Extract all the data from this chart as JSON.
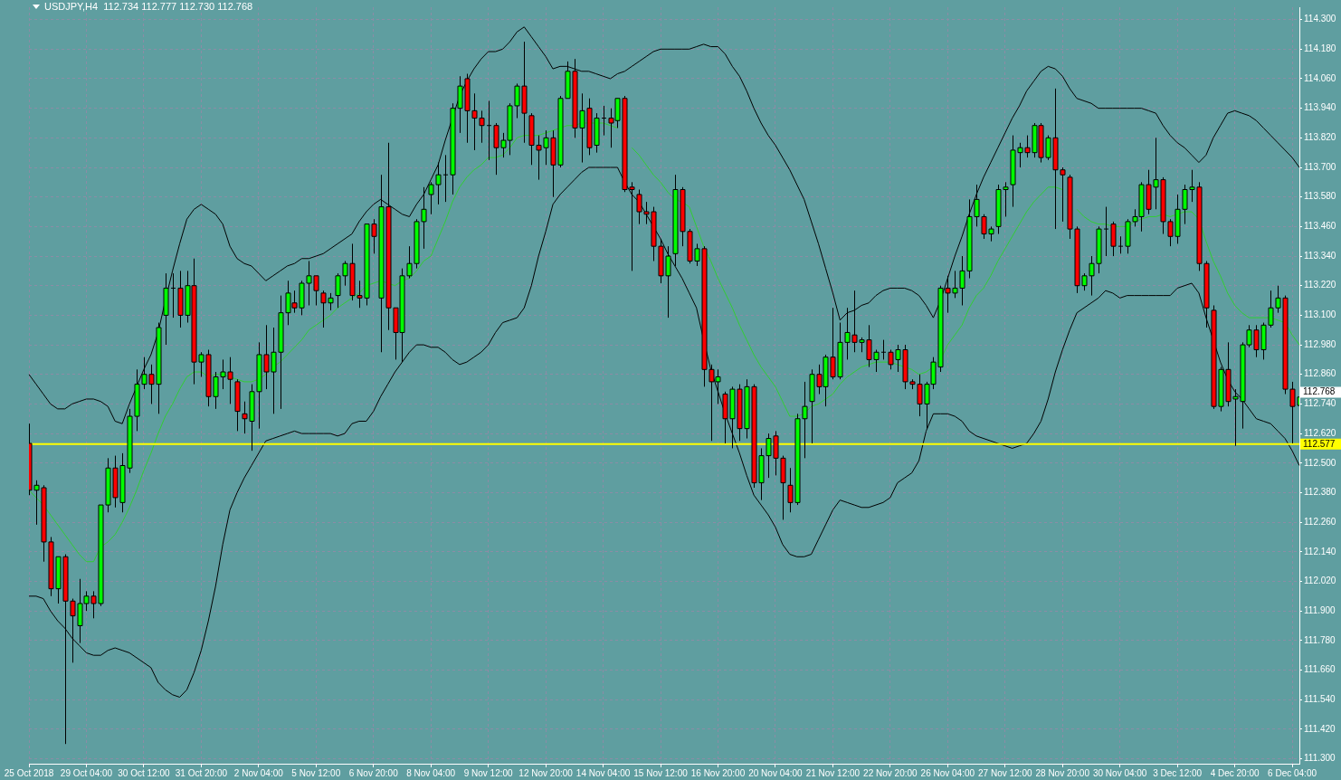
{
  "chart_data": {
    "type": "candlestick",
    "title": "USDJPY,H4  112.734 112.777 112.730 112.768",
    "categories": [
      "25 Oct 2018",
      null,
      null,
      null,
      null,
      null,
      null,
      null,
      "29 Oct 04:00",
      null,
      null,
      null,
      null,
      null,
      null,
      null,
      "30 Oct 12:00",
      null,
      null,
      null,
      null,
      null,
      null,
      null,
      "31 Oct 20:00",
      null,
      null,
      null,
      null,
      null,
      null,
      null,
      "2 Nov 04:00",
      null,
      null,
      null,
      null,
      null,
      null,
      null,
      "5 Nov 12:00",
      null,
      null,
      null,
      null,
      null,
      null,
      null,
      "6 Nov 20:00",
      null,
      null,
      null,
      null,
      null,
      null,
      null,
      "8 Nov 04:00",
      null,
      null,
      null,
      null,
      null,
      null,
      null,
      "9 Nov 12:00",
      null,
      null,
      null,
      null,
      null,
      null,
      null,
      "12 Nov 20:00",
      null,
      null,
      null,
      null,
      null,
      null,
      null,
      "14 Nov 04:00",
      null,
      null,
      null,
      null,
      null,
      null,
      null,
      "15 Nov 12:00",
      null,
      null,
      null,
      null,
      null,
      null,
      null,
      "16 Nov 20:00",
      null,
      null,
      null,
      null,
      null,
      null,
      null,
      "20 Nov 04:00",
      null,
      null,
      null,
      null,
      null,
      null,
      null,
      "21 Nov 12:00",
      null,
      null,
      null,
      null,
      null,
      null,
      null,
      "22 Nov 20:00",
      null,
      null,
      null,
      null,
      null,
      null,
      null,
      "26 Nov 04:00",
      null,
      null,
      null,
      null,
      null,
      null,
      null,
      "27 Nov 12:00",
      null,
      null,
      null,
      null,
      null,
      null,
      null,
      "28 Nov 20:00",
      null,
      null,
      null,
      null,
      null,
      null,
      null,
      "30 Nov 04:00",
      null,
      null,
      null,
      null,
      null,
      null,
      null,
      "3 Dec 12:00",
      null,
      null,
      null,
      null,
      null,
      null,
      null,
      "4 Dec 20:00",
      null,
      null,
      null,
      null,
      null,
      null,
      null,
      "6 Dec 04:00",
      null
    ],
    "ohlc": [
      [
        112.58,
        112.66,
        112.37,
        112.39
      ],
      [
        112.39,
        112.43,
        112.25,
        112.41
      ],
      [
        112.4,
        112.41,
        112.1,
        112.18
      ],
      [
        112.18,
        112.2,
        111.96,
        111.99
      ],
      [
        111.99,
        112.12,
        111.93,
        112.12
      ],
      [
        112.12,
        112.13,
        111.36,
        111.94
      ],
      [
        111.94,
        111.95,
        111.69,
        111.88
      ],
      [
        111.84,
        112.03,
        111.77,
        111.93
      ],
      [
        111.93,
        111.98,
        111.9,
        111.96
      ],
      [
        111.96,
        111.98,
        111.87,
        111.93
      ],
      [
        111.93,
        112.33,
        111.92,
        112.33
      ],
      [
        112.33,
        112.52,
        112.3,
        112.48
      ],
      [
        112.48,
        112.53,
        112.32,
        112.36
      ],
      [
        112.34,
        112.54,
        112.3,
        112.49
      ],
      [
        112.48,
        112.72,
        112.46,
        112.69
      ],
      [
        112.69,
        112.88,
        112.63,
        112.82
      ],
      [
        112.82,
        112.93,
        112.8,
        112.86
      ],
      [
        112.86,
        112.9,
        112.74,
        112.82
      ],
      [
        112.82,
        113.07,
        112.7,
        113.05
      ],
      [
        113.1,
        113.27,
        112.98,
        113.21
      ],
      [
        113.21,
        113.27,
        113.09,
        113.21
      ],
      [
        113.21,
        113.28,
        113.05,
        113.1
      ],
      [
        113.1,
        113.28,
        113.07,
        113.22
      ],
      [
        113.22,
        113.33,
        112.82,
        112.91
      ],
      [
        112.91,
        112.95,
        112.85,
        112.94
      ],
      [
        112.94,
        112.96,
        112.73,
        112.77
      ],
      [
        112.77,
        112.87,
        112.72,
        112.85
      ],
      [
        112.85,
        112.92,
        112.8,
        112.87
      ],
      [
        112.87,
        112.93,
        112.74,
        112.84
      ],
      [
        112.83,
        112.84,
        112.63,
        112.71
      ],
      [
        112.7,
        112.75,
        112.62,
        112.68
      ],
      [
        112.67,
        112.82,
        112.55,
        112.79
      ],
      [
        112.79,
        112.99,
        112.64,
        112.94
      ],
      [
        112.94,
        113.06,
        112.8,
        112.87
      ],
      [
        112.87,
        113.05,
        112.7,
        112.95
      ],
      [
        112.95,
        113.18,
        112.72,
        113.11
      ],
      [
        113.11,
        113.24,
        113.06,
        113.19
      ],
      [
        113.15,
        113.2,
        113.11,
        113.13
      ],
      [
        113.13,
        113.24,
        113.1,
        113.23
      ],
      [
        113.23,
        113.32,
        113.14,
        113.26
      ],
      [
        113.26,
        113.26,
        113.14,
        113.2
      ],
      [
        113.19,
        113.2,
        113.05,
        113.15
      ],
      [
        113.15,
        113.19,
        113.12,
        113.17
      ],
      [
        113.18,
        113.27,
        113.13,
        113.26
      ],
      [
        113.26,
        113.32,
        113.22,
        113.31
      ],
      [
        113.31,
        113.39,
        113.16,
        113.18
      ],
      [
        113.18,
        113.24,
        113.13,
        113.17
      ],
      [
        113.17,
        113.47,
        113.14,
        113.47
      ],
      [
        113.47,
        113.49,
        113.35,
        113.42
      ],
      [
        113.17,
        113.67,
        112.95,
        113.54
      ],
      [
        113.54,
        113.8,
        113.04,
        113.13
      ],
      [
        113.13,
        113.13,
        112.92,
        113.03
      ],
      [
        113.03,
        113.29,
        112.91,
        113.26
      ],
      [
        113.26,
        113.38,
        113.25,
        113.31
      ],
      [
        113.31,
        113.49,
        113.29,
        113.48
      ],
      [
        113.48,
        113.62,
        113.37,
        113.53
      ],
      [
        113.59,
        113.64,
        113.51,
        113.63
      ],
      [
        113.63,
        113.72,
        113.55,
        113.67
      ],
      [
        113.67,
        113.75,
        113.56,
        113.67
      ],
      [
        113.67,
        113.96,
        113.59,
        113.94
      ],
      [
        113.94,
        114.07,
        113.84,
        114.03
      ],
      [
        114.06,
        114.08,
        113.8,
        113.93
      ],
      [
        113.93,
        114.0,
        113.77,
        113.9
      ],
      [
        113.9,
        113.93,
        113.8,
        113.87
      ],
      [
        113.87,
        113.97,
        113.73,
        113.87
      ],
      [
        113.87,
        113.88,
        113.67,
        113.78
      ],
      [
        113.78,
        113.84,
        113.74,
        113.81
      ],
      [
        113.81,
        113.96,
        113.75,
        113.95
      ],
      [
        113.95,
        114.04,
        113.9,
        114.03
      ],
      [
        114.03,
        114.21,
        113.8,
        113.92
      ],
      [
        113.91,
        113.92,
        113.71,
        113.79
      ],
      [
        113.79,
        113.83,
        113.65,
        113.77
      ],
      [
        113.78,
        113.85,
        113.71,
        113.82
      ],
      [
        113.82,
        113.85,
        113.58,
        113.71
      ],
      [
        113.71,
        113.99,
        113.7,
        113.98
      ],
      [
        113.98,
        114.13,
        113.98,
        114.09
      ],
      [
        114.09,
        114.14,
        113.82,
        113.86
      ],
      [
        113.86,
        114.0,
        113.72,
        113.93
      ],
      [
        113.94,
        113.98,
        113.75,
        113.78
      ],
      [
        113.79,
        113.92,
        113.76,
        113.9
      ],
      [
        113.9,
        113.95,
        113.83,
        113.9
      ],
      [
        113.9,
        113.94,
        113.78,
        113.88
      ],
      [
        113.89,
        113.98,
        113.86,
        113.98
      ],
      [
        113.98,
        113.99,
        113.6,
        113.61
      ],
      [
        113.62,
        113.64,
        113.28,
        113.61
      ],
      [
        113.59,
        113.61,
        113.47,
        113.52
      ],
      [
        113.52,
        113.56,
        113.47,
        113.51
      ],
      [
        113.52,
        113.54,
        113.32,
        113.38
      ],
      [
        113.38,
        113.41,
        113.23,
        113.26
      ],
      [
        113.26,
        113.38,
        113.09,
        113.34
      ],
      [
        113.35,
        113.67,
        113.3,
        113.61
      ],
      [
        113.61,
        113.62,
        113.38,
        113.44
      ],
      [
        113.44,
        113.45,
        113.31,
        113.32
      ],
      [
        113.32,
        113.39,
        113.3,
        113.37
      ],
      [
        113.37,
        113.38,
        112.81,
        112.88
      ],
      [
        112.88,
        112.9,
        112.59,
        112.83
      ],
      [
        112.83,
        112.88,
        112.74,
        112.85
      ],
      [
        112.78,
        112.79,
        112.58,
        112.68
      ],
      [
        112.68,
        112.81,
        112.56,
        112.8
      ],
      [
        112.8,
        112.82,
        112.59,
        112.64
      ],
      [
        112.64,
        112.84,
        112.6,
        112.81
      ],
      [
        112.81,
        112.82,
        112.4,
        112.42
      ],
      [
        112.42,
        112.56,
        112.35,
        112.53
      ],
      [
        112.53,
        112.62,
        112.44,
        112.6
      ],
      [
        112.61,
        112.63,
        112.45,
        112.52
      ],
      [
        112.52,
        112.53,
        112.27,
        112.42
      ],
      [
        112.41,
        112.48,
        112.3,
        112.34
      ],
      [
        112.34,
        112.7,
        112.33,
        112.68
      ],
      [
        112.68,
        112.83,
        112.52,
        112.73
      ],
      [
        112.75,
        112.88,
        112.58,
        112.86
      ],
      [
        112.86,
        112.9,
        112.78,
        112.81
      ],
      [
        112.81,
        112.94,
        112.73,
        112.93
      ],
      [
        112.93,
        113.13,
        112.84,
        112.85
      ],
      [
        112.85,
        113.07,
        112.84,
        112.99
      ],
      [
        112.99,
        113.13,
        112.92,
        113.03
      ],
      [
        113.02,
        113.2,
        112.95,
        112.99
      ],
      [
        112.99,
        113.01,
        112.95,
        113.0
      ],
      [
        113.0,
        113.06,
        112.89,
        112.92
      ],
      [
        112.92,
        112.96,
        112.87,
        112.95
      ],
      [
        112.95,
        113.0,
        112.92,
        112.95
      ],
      [
        112.95,
        112.96,
        112.88,
        112.9
      ],
      [
        112.92,
        112.98,
        112.87,
        112.96
      ],
      [
        112.96,
        112.98,
        112.8,
        112.83
      ],
      [
        112.83,
        112.84,
        112.8,
        112.82
      ],
      [
        112.82,
        112.86,
        112.69,
        112.74
      ],
      [
        112.74,
        112.83,
        112.64,
        112.82
      ],
      [
        112.82,
        112.93,
        112.8,
        112.91
      ],
      [
        112.89,
        113.22,
        112.87,
        113.21
      ],
      [
        113.21,
        113.26,
        113.11,
        113.19
      ],
      [
        113.19,
        113.28,
        113.17,
        113.21
      ],
      [
        113.21,
        113.34,
        113.14,
        113.28
      ],
      [
        113.28,
        113.57,
        113.25,
        113.5
      ],
      [
        113.5,
        113.63,
        113.46,
        113.57
      ],
      [
        113.5,
        113.51,
        113.41,
        113.43
      ],
      [
        113.43,
        113.46,
        113.4,
        113.45
      ],
      [
        113.46,
        113.63,
        113.43,
        113.61
      ],
      [
        113.61,
        113.64,
        113.5,
        113.62
      ],
      [
        113.63,
        113.83,
        113.54,
        113.77
      ],
      [
        113.76,
        113.8,
        113.7,
        113.78
      ],
      [
        113.78,
        113.83,
        113.74,
        113.76
      ],
      [
        113.76,
        113.88,
        113.74,
        113.87
      ],
      [
        113.87,
        113.88,
        113.72,
        113.74
      ],
      [
        113.74,
        113.83,
        113.73,
        113.82
      ],
      [
        113.82,
        114.02,
        113.45,
        113.69
      ],
      [
        113.69,
        113.7,
        113.48,
        113.67
      ],
      [
        113.66,
        113.67,
        113.41,
        113.45
      ],
      [
        113.45,
        113.46,
        113.19,
        113.22
      ],
      [
        113.22,
        113.27,
        113.2,
        113.26
      ],
      [
        113.26,
        113.34,
        113.18,
        113.31
      ],
      [
        113.31,
        113.46,
        113.27,
        113.45
      ],
      [
        113.45,
        113.54,
        113.34,
        113.45
      ],
      [
        113.47,
        113.48,
        113.34,
        113.38
      ],
      [
        113.38,
        113.42,
        113.35,
        113.38
      ],
      [
        113.38,
        113.49,
        113.35,
        113.48
      ],
      [
        113.48,
        113.53,
        113.46,
        113.5
      ],
      [
        113.5,
        113.64,
        113.44,
        113.63
      ],
      [
        113.63,
        113.69,
        113.51,
        113.53
      ],
      [
        113.62,
        113.82,
        113.53,
        113.65
      ],
      [
        113.65,
        113.66,
        113.43,
        113.48
      ],
      [
        113.48,
        113.49,
        113.38,
        113.42
      ],
      [
        113.42,
        113.59,
        113.39,
        113.53
      ],
      [
        113.53,
        113.63,
        113.47,
        113.61
      ],
      [
        113.61,
        113.69,
        113.56,
        113.62
      ],
      [
        113.62,
        113.64,
        113.28,
        113.31
      ],
      [
        113.31,
        113.32,
        113.05,
        113.13
      ],
      [
        113.12,
        113.14,
        112.72,
        112.73
      ],
      [
        112.73,
        112.89,
        112.71,
        112.88
      ],
      [
        112.88,
        112.99,
        112.73,
        112.75
      ],
      [
        112.76,
        112.8,
        112.57,
        112.77
      ],
      [
        112.75,
        112.99,
        112.64,
        112.98
      ],
      [
        112.98,
        113.06,
        112.97,
        113.04
      ],
      [
        113.04,
        113.06,
        112.93,
        112.96
      ],
      [
        112.96,
        113.07,
        112.92,
        113.06
      ],
      [
        113.06,
        113.2,
        113.05,
        113.13
      ],
      [
        113.13,
        113.22,
        113.11,
        113.17
      ],
      [
        113.17,
        113.18,
        112.78,
        112.8
      ],
      [
        112.8,
        112.83,
        112.58,
        112.73
      ],
      [
        112.734,
        112.777,
        112.73,
        112.768
      ]
    ],
    "series": [
      {
        "type": "line",
        "color": "#000000",
        "values": [
          112.86,
          112.82,
          112.78,
          112.74,
          112.72,
          112.72,
          112.74,
          112.75,
          112.76,
          112.76,
          112.75,
          112.73,
          112.67,
          112.66,
          112.74,
          112.81,
          112.88,
          112.94,
          113.03,
          113.16,
          113.28,
          113.39,
          113.49,
          113.53,
          113.55,
          113.53,
          113.51,
          113.47,
          113.38,
          113.33,
          113.31,
          113.3,
          113.27,
          113.24,
          113.26,
          113.28,
          113.3,
          113.31,
          113.33,
          113.33,
          113.34,
          113.35,
          113.37,
          113.39,
          113.41,
          113.43,
          113.48,
          113.52,
          113.55,
          113.57,
          113.55,
          113.53,
          113.51,
          113.5,
          113.55,
          113.59,
          113.65,
          113.71,
          113.81,
          113.9,
          113.99,
          114.05,
          114.1,
          114.14,
          114.17,
          114.17,
          114.18,
          114.21,
          114.25,
          114.27,
          114.23,
          114.19,
          114.15,
          114.1,
          114.11,
          114.11,
          114.1,
          114.09,
          114.09,
          114.08,
          114.07,
          114.06,
          114.08,
          114.09,
          114.11,
          114.13,
          114.15,
          114.17,
          114.18,
          114.18,
          114.18,
          114.18,
          114.18,
          114.19,
          114.2,
          114.19,
          114.19,
          114.16,
          114.11,
          114.07,
          114.01,
          113.94,
          113.88,
          113.83,
          113.79,
          113.74,
          113.69,
          113.63,
          113.57,
          113.48,
          113.39,
          113.29,
          113.19,
          113.08,
          113.11,
          113.12,
          113.14,
          113.15,
          113.18,
          113.2,
          113.21,
          113.21,
          113.21,
          113.2,
          113.18,
          113.14,
          113.09,
          113.16,
          113.25,
          113.34,
          113.42,
          113.51,
          113.59,
          113.66,
          113.72,
          113.78,
          113.84,
          113.9,
          113.95,
          114.01,
          114.05,
          114.09,
          114.11,
          114.1,
          114.07,
          114.02,
          113.98,
          113.97,
          113.96,
          113.94,
          113.94,
          113.94,
          113.94,
          113.94,
          113.94,
          113.94,
          113.93,
          113.92,
          113.87,
          113.83,
          113.8,
          113.78,
          113.75,
          113.72,
          113.75,
          113.82,
          113.87,
          113.92,
          113.93,
          113.92,
          113.91,
          113.89,
          113.86,
          113.83,
          113.8,
          113.77,
          113.74,
          113.7
        ]
      },
      {
        "type": "line",
        "color": "#32cd32",
        "values": [
          112.39,
          112.36,
          112.33,
          112.29,
          112.25,
          112.21,
          112.17,
          112.13,
          112.1,
          112.1,
          112.16,
          112.18,
          112.21,
          112.26,
          112.32,
          112.39,
          112.47,
          112.54,
          112.62,
          112.69,
          112.74,
          112.8,
          112.85,
          112.87,
          112.87,
          112.85,
          112.86,
          112.86,
          112.85,
          112.84,
          112.83,
          112.83,
          112.84,
          112.86,
          112.89,
          112.91,
          112.94,
          112.97,
          113.0,
          113.04,
          113.06,
          113.08,
          113.1,
          113.13,
          113.15,
          113.17,
          113.19,
          113.22,
          113.23,
          113.24,
          113.23,
          113.22,
          113.24,
          113.25,
          113.28,
          113.32,
          113.34,
          113.41,
          113.48,
          113.56,
          113.62,
          113.66,
          113.69,
          113.71,
          113.74,
          113.74,
          113.75,
          113.78,
          113.82,
          113.83,
          113.83,
          113.83,
          113.84,
          113.85,
          113.86,
          113.87,
          113.87,
          113.88,
          113.88,
          113.88,
          113.88,
          113.87,
          113.86,
          null,
          113.78,
          113.75,
          113.71,
          113.67,
          113.64,
          113.6,
          113.57,
          113.56,
          113.54,
          113.46,
          113.38,
          113.32,
          113.25,
          113.19,
          113.13,
          113.06,
          113.0,
          112.94,
          112.89,
          112.85,
          112.81,
          112.75,
          112.69,
          112.69,
          112.7,
          112.73,
          112.74,
          112.76,
          112.78,
          112.82,
          112.85,
          112.87,
          112.89,
          112.9,
          112.91,
          112.91,
          112.91,
          112.9,
          112.89,
          112.88,
          112.86,
          112.87,
          112.89,
          112.92,
          112.98,
          113.02,
          113.06,
          113.13,
          113.18,
          113.21,
          113.26,
          113.32,
          113.37,
          113.42,
          113.47,
          113.52,
          113.56,
          113.59,
          113.62,
          113.62,
          113.61,
          null,
          113.53,
          113.5,
          113.48,
          113.47,
          113.47,
          113.46,
          113.46,
          113.46,
          113.48,
          113.49,
          113.5,
          113.5,
          113.51,
          113.5,
          113.51,
          113.52,
          113.52,
          113.49,
          113.4,
          113.32,
          113.26,
          113.19,
          113.14,
          113.11,
          113.09,
          113.09,
          113.09,
          113.09,
          113.08,
          113.07,
          113.02,
          112.98
        ]
      },
      {
        "type": "line",
        "color": "#000000",
        "values": [
          111.96,
          111.96,
          111.95,
          111.9,
          111.86,
          111.83,
          111.79,
          111.76,
          111.73,
          111.72,
          111.72,
          111.74,
          111.75,
          111.74,
          111.73,
          111.71,
          111.69,
          111.67,
          111.61,
          111.58,
          111.56,
          111.55,
          111.58,
          111.65,
          111.74,
          111.86,
          112.0,
          112.17,
          112.31,
          112.38,
          112.44,
          112.49,
          112.54,
          112.59,
          112.6,
          112.61,
          112.62,
          112.63,
          112.62,
          112.62,
          112.62,
          112.62,
          112.62,
          112.61,
          112.62,
          112.66,
          112.67,
          112.67,
          112.71,
          112.77,
          112.82,
          112.87,
          112.91,
          112.95,
          112.98,
          112.98,
          112.97,
          112.97,
          112.95,
          112.92,
          112.9,
          112.91,
          112.93,
          112.95,
          112.98,
          113.03,
          113.07,
          113.08,
          113.09,
          113.13,
          113.22,
          113.34,
          113.44,
          113.55,
          113.59,
          113.62,
          113.65,
          113.68,
          113.7,
          113.7,
          113.7,
          113.7,
          113.7,
          113.64,
          113.59,
          113.56,
          113.51,
          113.46,
          113.41,
          113.35,
          113.3,
          113.25,
          113.19,
          113.13,
          113.0,
          112.88,
          112.79,
          112.7,
          112.62,
          112.54,
          112.45,
          112.37,
          112.33,
          112.29,
          112.24,
          112.17,
          112.13,
          112.12,
          112.12,
          112.13,
          112.19,
          112.25,
          112.31,
          112.35,
          112.34,
          112.33,
          112.32,
          112.32,
          112.33,
          112.34,
          112.36,
          112.42,
          112.44,
          112.46,
          112.51,
          112.63,
          112.7,
          112.7,
          112.7,
          112.69,
          112.67,
          112.63,
          112.61,
          112.6,
          112.59,
          112.58,
          112.57,
          112.56,
          112.57,
          112.58,
          112.62,
          112.67,
          112.76,
          112.87,
          112.96,
          113.04,
          113.11,
          113.13,
          113.15,
          113.17,
          113.2,
          113.19,
          113.17,
          113.18,
          113.18,
          113.18,
          113.18,
          113.18,
          113.18,
          113.18,
          113.21,
          113.22,
          113.23,
          113.19,
          113.09,
          113.0,
          112.91,
          112.84,
          112.79,
          112.76,
          112.72,
          112.68,
          112.67,
          112.66,
          112.63,
          112.6,
          112.55,
          112.49
        ]
      }
    ],
    "ylim": [
      111.28,
      114.35
    ],
    "yticks": [
      {
        "value": 111.3,
        "label": "111.300"
      },
      {
        "value": 111.42,
        "label": "111.420"
      },
      {
        "value": 111.54,
        "label": "111.540"
      },
      {
        "value": 111.66,
        "label": "111.660"
      },
      {
        "value": 111.78,
        "label": "111.780"
      },
      {
        "value": 111.9,
        "label": "111.900"
      },
      {
        "value": 112.02,
        "label": "112.020"
      },
      {
        "value": 112.14,
        "label": "112.140"
      },
      {
        "value": 112.26,
        "label": "112.260"
      },
      {
        "value": 112.38,
        "label": "112.380"
      },
      {
        "value": 112.5,
        "label": "112.500"
      },
      {
        "value": 112.62,
        "label": "112.620"
      },
      {
        "value": 112.74,
        "label": "112.740"
      },
      {
        "value": 112.86,
        "label": "112.860"
      },
      {
        "value": 112.98,
        "label": "112.980"
      },
      {
        "value": 113.1,
        "label": "113.100"
      },
      {
        "value": 113.22,
        "label": "113.220"
      },
      {
        "value": 113.34,
        "label": "113.340"
      },
      {
        "value": 113.46,
        "label": "113.460"
      },
      {
        "value": 113.58,
        "label": "113.580"
      },
      {
        "value": 113.7,
        "label": "113.700"
      },
      {
        "value": 113.82,
        "label": "113.820"
      },
      {
        "value": 113.94,
        "label": "113.940"
      },
      {
        "value": 114.06,
        "label": "114.060"
      },
      {
        "value": 114.18,
        "label": "114.180"
      },
      {
        "value": 114.3,
        "label": "114.300"
      }
    ],
    "grid": true,
    "ref_lines": [
      {
        "axis": "y",
        "value": 112.577,
        "label": "112.577",
        "color": "#ffff00"
      }
    ],
    "annotations": [
      "112.768"
    ]
  }
}
